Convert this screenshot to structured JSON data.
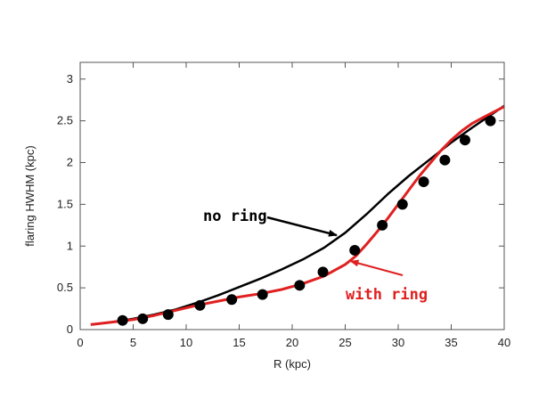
{
  "chart_data": {
    "type": "line",
    "xlabel": "R (kpc)",
    "ylabel": "flaring HWHM (kpc)",
    "xlim": [
      0,
      40
    ],
    "ylim": [
      0,
      3.2
    ],
    "xticks": [
      0,
      5,
      10,
      15,
      20,
      25,
      30,
      35,
      40
    ],
    "yticks": [
      0,
      0.5,
      1,
      1.5,
      2,
      2.5,
      3
    ],
    "xtick_labels": [
      "0",
      "5",
      "10",
      "15",
      "20",
      "25",
      "30",
      "35",
      "40"
    ],
    "ytick_labels": [
      "0",
      "0.5",
      "1",
      "1.5",
      "2",
      "2.5",
      "3"
    ],
    "grid": false,
    "colors": {
      "no_ring": "#000000",
      "with_ring": "#e02020",
      "points": "#000000"
    },
    "series": [
      {
        "name": "no ring",
        "kind": "line",
        "color": "#000000",
        "x": [
          1,
          3,
          5,
          7,
          9,
          11,
          13,
          15,
          17,
          19,
          21,
          23,
          25,
          27,
          29,
          31,
          33,
          35,
          37,
          40
        ],
        "y": [
          0.06,
          0.09,
          0.13,
          0.18,
          0.24,
          0.32,
          0.41,
          0.51,
          0.61,
          0.72,
          0.84,
          0.98,
          1.16,
          1.38,
          1.62,
          1.84,
          2.04,
          2.24,
          2.42,
          2.68
        ]
      },
      {
        "name": "with ring",
        "kind": "line",
        "color": "#e02020",
        "x": [
          1,
          3,
          5,
          7,
          9,
          11,
          13,
          15,
          17,
          19,
          21,
          23,
          25,
          26,
          27,
          28,
          29,
          30,
          31,
          32,
          33,
          34,
          35,
          36,
          37,
          38,
          40
        ],
        "y": [
          0.06,
          0.09,
          0.12,
          0.17,
          0.23,
          0.29,
          0.34,
          0.39,
          0.43,
          0.48,
          0.55,
          0.64,
          0.78,
          0.88,
          1.02,
          1.17,
          1.33,
          1.5,
          1.67,
          1.84,
          1.99,
          2.14,
          2.27,
          2.38,
          2.47,
          2.54,
          2.67
        ]
      },
      {
        "name": "data points",
        "kind": "scatter",
        "color": "#000000",
        "x": [
          4,
          5.9,
          8.3,
          11.3,
          14.3,
          17.2,
          20.7,
          22.9,
          25.9,
          28.5,
          30.4,
          32.4,
          34.4,
          36.3,
          38.7
        ],
        "y": [
          0.11,
          0.13,
          0.18,
          0.29,
          0.36,
          0.42,
          0.53,
          0.69,
          0.95,
          1.25,
          1.5,
          1.77,
          2.03,
          2.27,
          2.5
        ]
      }
    ],
    "annotations": [
      {
        "text": "no ring",
        "color": "#000000",
        "arrow_to": [
          24.2,
          1.13
        ]
      },
      {
        "text": "with ring",
        "color": "#e02020",
        "arrow_to": [
          25.5,
          0.82
        ]
      }
    ]
  }
}
